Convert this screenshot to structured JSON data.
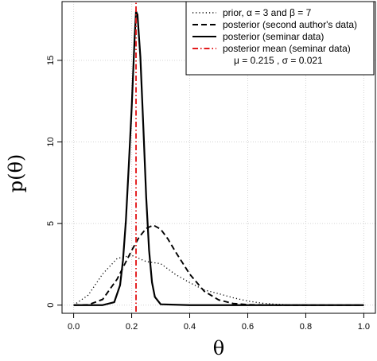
{
  "chart_data": {
    "type": "line",
    "xlabel": "θ",
    "ylabel": "p(θ)",
    "xlim": [
      -0.04,
      1.04
    ],
    "ylim": [
      -0.5,
      18.6
    ],
    "x_ticks": [
      0.0,
      0.2,
      0.4,
      0.6,
      0.8,
      1.0
    ],
    "x_tick_labels": [
      "0.0",
      "0.2",
      "0.4",
      "0.6",
      "0.8",
      "1.0"
    ],
    "y_ticks": [
      0,
      5,
      10,
      15
    ],
    "y_tick_labels": [
      "0",
      "5",
      "10",
      "15"
    ],
    "grid": true,
    "legend_position": "top-right",
    "series": [
      {
        "name": "prior,  α = 3 and β = 7",
        "style": "dotted",
        "color": "#000000",
        "x": [
          0.0,
          0.05,
          0.1,
          0.15,
          0.2,
          0.25,
          0.3,
          0.35,
          0.4,
          0.45,
          0.5,
          0.55,
          0.6,
          0.65,
          0.7,
          0.75,
          0.8,
          0.85,
          0.9,
          0.95,
          1.0
        ],
        "y": [
          0.0,
          0.61,
          1.91,
          2.86,
          3.05,
          2.67,
          2.54,
          1.89,
          1.38,
          0.93,
          0.7,
          0.45,
          0.25,
          0.12,
          0.05,
          0.02,
          0.01,
          0.0,
          0.0,
          0.0,
          0.0
        ]
      },
      {
        "name": "posterior (second author's data)",
        "style": "dashed",
        "color": "#000000",
        "x": [
          0.0,
          0.05,
          0.1,
          0.15,
          0.2,
          0.225,
          0.25,
          0.275,
          0.3,
          0.325,
          0.35,
          0.4,
          0.45,
          0.5,
          0.55,
          0.6,
          0.7,
          0.8,
          0.9,
          1.0
        ],
        "y": [
          0.0,
          0.02,
          0.35,
          1.6,
          3.35,
          4.15,
          4.7,
          4.9,
          4.65,
          4.05,
          3.3,
          1.9,
          0.85,
          0.32,
          0.1,
          0.03,
          0.0,
          0.0,
          0.0,
          0.0
        ]
      },
      {
        "name": "posterior (seminar data)",
        "style": "solid",
        "color": "#000000",
        "x": [
          0.0,
          0.1,
          0.14,
          0.16,
          0.17,
          0.18,
          0.19,
          0.2,
          0.21,
          0.215,
          0.22,
          0.23,
          0.24,
          0.25,
          0.26,
          0.27,
          0.28,
          0.3,
          0.4,
          1.0
        ],
        "y": [
          0.0,
          0.0,
          0.18,
          1.22,
          2.74,
          5.16,
          8.54,
          12.1,
          16.3,
          18.0,
          17.8,
          15.2,
          11.0,
          6.62,
          3.36,
          1.4,
          0.5,
          0.05,
          0.0,
          0.0
        ]
      },
      {
        "name": "posterior mean (seminar data)",
        "style": "dashdot-vertical",
        "color": "#e31a1c",
        "x": [
          0.215,
          0.215
        ],
        "y": [
          -0.4,
          18.6
        ]
      }
    ],
    "legend": [
      {
        "label": "prior,  α = 3 and β = 7",
        "style": "dotted",
        "color": "#000000"
      },
      {
        "label": "posterior (second author's data)",
        "style": "dashed",
        "color": "#000000"
      },
      {
        "label": "posterior (seminar data)",
        "style": "solid",
        "color": "#000000"
      },
      {
        "label": "posterior mean (seminar data)",
        "style": "dashdot",
        "color": "#e31a1c"
      }
    ],
    "annotation": "μ = 0.215 ,   σ = 0.021"
  }
}
